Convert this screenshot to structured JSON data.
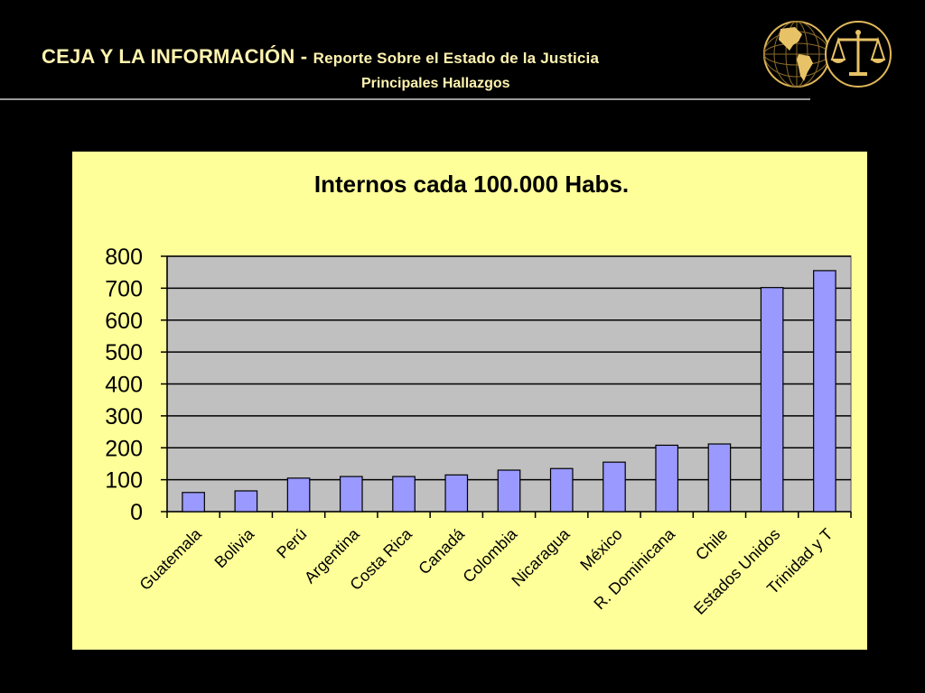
{
  "header": {
    "title": "CEJA Y LA INFORMACIÓN - ",
    "title_sub": "Reporte Sobre el Estado de la Justicia",
    "subtitle": "Principales Hallazgos"
  },
  "logos": [
    "globe-americas-icon",
    "scales-of-justice-icon"
  ],
  "colors": {
    "background": "#000000",
    "header_text": "#fff4b0",
    "chart_background": "#ffff99",
    "plot_background": "#c0c0c0",
    "bar_fill": "#9999ff"
  },
  "chart_data": {
    "type": "bar",
    "title": "Internos cada 100.000 Habs.",
    "xlabel": "",
    "ylabel": "",
    "ylim": [
      0,
      800
    ],
    "yticks": [
      0,
      100,
      200,
      300,
      400,
      500,
      600,
      700,
      800
    ],
    "grid": true,
    "categories": [
      "Guatemala",
      "Bolivia",
      "Perú",
      "Argentina",
      "Costa Rica",
      "Canadá",
      "Colombia",
      "Nicaragua",
      "México",
      "R. Dominicana",
      "Chile",
      "Estados Unidos",
      "Trinidad y T"
    ],
    "values": [
      60,
      65,
      105,
      110,
      110,
      115,
      130,
      135,
      155,
      208,
      212,
      702,
      755
    ]
  }
}
